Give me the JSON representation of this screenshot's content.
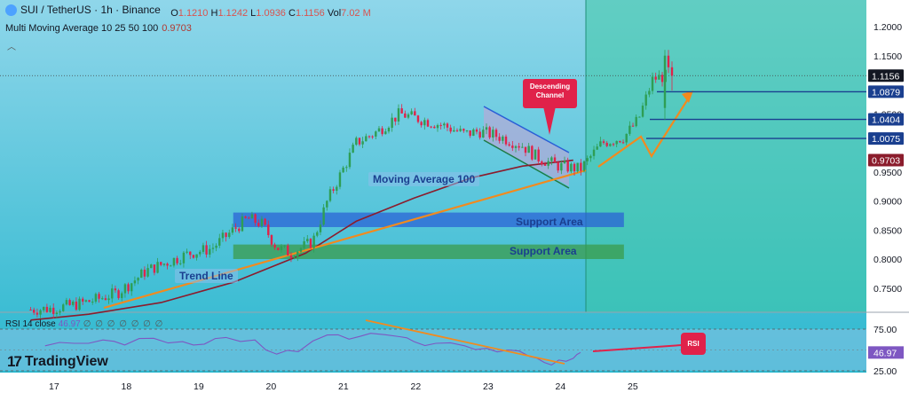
{
  "header": {
    "symbol": "SUI / TetherUS · 1h · Binance",
    "o_key": "O",
    "o_val": "1.1210",
    "h_key": "H",
    "h_val": "1.1242",
    "l_key": "L",
    "l_val": "1.0936",
    "c_key": "C",
    "c_val": "1.1156",
    "vol_key": "Vol",
    "vol_val": "7.02 M",
    "ma_label": "Multi Moving Average 10 25 50 100",
    "ma_value": "0.9703",
    "collapse": "︿"
  },
  "rsi_header": {
    "label": "RSI 14 close",
    "value": "46.97",
    "zeros": "∅ ∅ ∅ ∅ ∅ ∅ ∅"
  },
  "branding": {
    "name": "TradingView",
    "logo": "17"
  },
  "annotations": {
    "moving_average": "Moving Average 100",
    "support_1": "Support Area",
    "support_2": "Support Area",
    "trend_line": "Trend Line",
    "descending_channel": "Descending Channel",
    "rsi": "RSI"
  },
  "colors": {
    "bg_top": "#8fd6ea",
    "bg_bottom": "#2cb8cf",
    "future_zone": "#3cc7a2",
    "up": "#2e9e54",
    "down": "#e0224a",
    "ma": "#8b1c2c",
    "trend": "#f28a1e",
    "level": "#1a3f8f",
    "support_blue": "#2a5fd6",
    "support_green": "#3a9a46",
    "rsi": "#7e57c2"
  },
  "chart_data": [
    {
      "type": "candlestick",
      "title": "SUI / TetherUS · 1h · Binance",
      "x_ticks": [
        "17",
        "18",
        "19",
        "20",
        "21",
        "22",
        "23",
        "24",
        "25"
      ],
      "y_ticks": [
        "1.2000",
        "1.1500",
        "1.0500",
        "0.9500",
        "0.9000",
        "0.8500",
        "0.8000",
        "0.7500"
      ],
      "ylim": [
        0.7,
        1.23
      ],
      "price_levels": [
        {
          "label": "1.1156",
          "value": 1.1156,
          "style": "current"
        },
        {
          "label": "1.0879",
          "value": 1.0879,
          "style": "level"
        },
        {
          "label": "1.0404",
          "value": 1.0404,
          "style": "level"
        },
        {
          "label": "1.0075",
          "value": 1.0075,
          "style": "level"
        },
        {
          "label": "0.9703",
          "value": 0.9703,
          "style": "ma"
        }
      ],
      "support_zones": [
        {
          "label": "Support Area",
          "from_x": 19.5,
          "to_x": 24.9,
          "low": 0.855,
          "high": 0.88
        },
        {
          "label": "Support Area",
          "from_x": 19.5,
          "to_x": 24.9,
          "low": 0.8,
          "high": 0.825
        }
      ],
      "close_path": [
        [
          16.7,
          0.713
        ],
        [
          17.0,
          0.715
        ],
        [
          17.3,
          0.721
        ],
        [
          17.6,
          0.73
        ],
        [
          17.9,
          0.742
        ],
        [
          18.1,
          0.76
        ],
        [
          18.3,
          0.78
        ],
        [
          18.6,
          0.795
        ],
        [
          18.9,
          0.81
        ],
        [
          19.2,
          0.818
        ],
        [
          19.5,
          0.85
        ],
        [
          19.7,
          0.87
        ],
        [
          19.9,
          0.86
        ],
        [
          20.1,
          0.82
        ],
        [
          20.3,
          0.81
        ],
        [
          20.6,
          0.83
        ],
        [
          20.8,
          0.9
        ],
        [
          21.0,
          0.95
        ],
        [
          21.2,
          1.0
        ],
        [
          21.5,
          1.02
        ],
        [
          21.8,
          1.05
        ],
        [
          22.1,
          1.04
        ],
        [
          22.4,
          1.03
        ],
        [
          22.7,
          1.015
        ],
        [
          22.9,
          1.02
        ],
        [
          23.2,
          1.01
        ],
        [
          23.5,
          0.995
        ],
        [
          23.7,
          0.975
        ],
        [
          24.0,
          0.96
        ],
        [
          24.3,
          0.955
        ],
        [
          24.6,
          1.0
        ],
        [
          24.9,
          1.01
        ],
        [
          25.1,
          1.04
        ],
        [
          25.3,
          1.11
        ],
        [
          25.5,
          1.1156
        ]
      ],
      "moving_average_100": [
        [
          16.7,
          0.695
        ],
        [
          17.5,
          0.705
        ],
        [
          18.5,
          0.725
        ],
        [
          19.5,
          0.76
        ],
        [
          20.5,
          0.81
        ],
        [
          21.2,
          0.865
        ],
        [
          22.0,
          0.905
        ],
        [
          22.8,
          0.94
        ],
        [
          23.5,
          0.96
        ],
        [
          24.2,
          0.97
        ]
      ]
    },
    {
      "type": "line",
      "title": "RSI 14 close",
      "y_ticks": [
        "75.00",
        "25.00"
      ],
      "ylim": [
        15,
        85
      ],
      "current": 46.97,
      "series": [
        {
          "name": "RSI 14 close",
          "values": [
            [
              16.9,
              55
            ],
            [
              17.3,
              58
            ],
            [
              17.7,
              62
            ],
            [
              18.0,
              56
            ],
            [
              18.4,
              64
            ],
            [
              18.8,
              60
            ],
            [
              19.1,
              57
            ],
            [
              19.4,
              65
            ],
            [
              19.8,
              62
            ],
            [
              20.1,
              45
            ],
            [
              20.4,
              48
            ],
            [
              20.8,
              68
            ],
            [
              21.1,
              63
            ],
            [
              21.4,
              70
            ],
            [
              21.8,
              66
            ],
            [
              22.0,
              60
            ],
            [
              22.3,
              58
            ],
            [
              22.7,
              55
            ],
            [
              23.0,
              52
            ],
            [
              23.3,
              50
            ],
            [
              23.6,
              42
            ],
            [
              23.8,
              35
            ],
            [
              24.0,
              38
            ],
            [
              24.2,
              40
            ],
            [
              24.3,
              46.97
            ]
          ]
        }
      ]
    }
  ]
}
